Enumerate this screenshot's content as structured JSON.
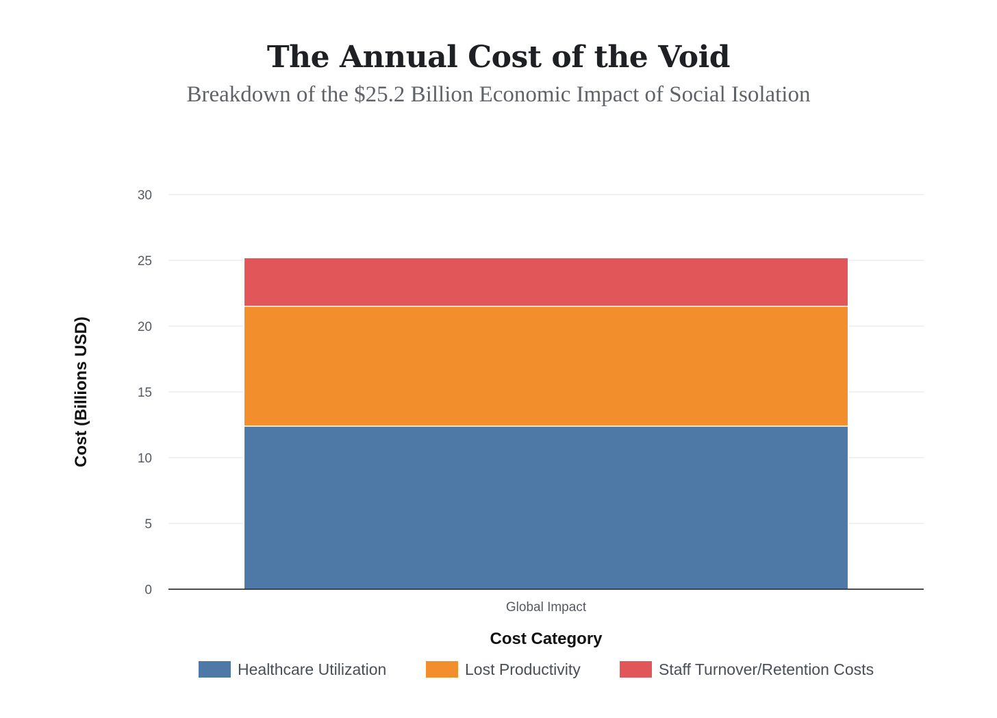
{
  "title": "The Annual Cost of the Void",
  "subtitle": "Breakdown of the $25.2 Billion Economic Impact of Social Isolation",
  "chart_data": {
    "type": "bar",
    "stacked": true,
    "categories": [
      "Global Impact"
    ],
    "series": [
      {
        "name": "Healthcare Utilization",
        "values": [
          12.4
        ],
        "color": "#4e79a7"
      },
      {
        "name": "Lost Productivity",
        "values": [
          9.1
        ],
        "color": "#f28e2c"
      },
      {
        "name": "Staff Turnover/Retention Costs",
        "values": [
          3.7
        ],
        "color": "#e15759"
      }
    ],
    "xlabel": "Cost Category",
    "ylabel": "Cost (Billions USD)",
    "ylim": [
      0,
      30
    ],
    "yticks": [
      0,
      5,
      10,
      15,
      20,
      25,
      30
    ],
    "grid": true,
    "legend_position": "bottom"
  }
}
